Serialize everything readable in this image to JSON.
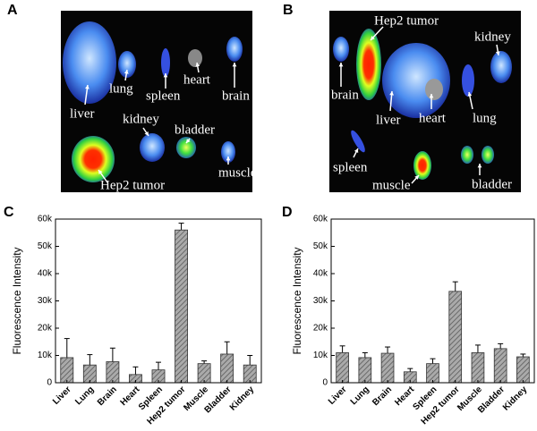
{
  "panels": [
    {
      "label": "A",
      "image_labels": [
        "liver",
        "lung",
        "spleen",
        "heart",
        "brain",
        "kidney",
        "bladder",
        "Hep2 tumor",
        "muscle"
      ]
    },
    {
      "label": "B",
      "image_labels": [
        "Hep2 tumor",
        "kidney",
        "brain",
        "liver",
        "heart",
        "lung",
        "spleen",
        "muscle",
        "bladder"
      ]
    },
    {
      "label": "C"
    },
    {
      "label": "D"
    }
  ],
  "chart_data": [
    {
      "type": "bar",
      "y_label": "Fluorescence Intensity",
      "categories": [
        "Liver",
        "Lung",
        "Brain",
        "Heart",
        "Spleen",
        "Hep2 tumor",
        "Muscle",
        "Bladder",
        "Kidney"
      ],
      "values": [
        9200,
        6500,
        7700,
        3000,
        4700,
        56000,
        7000,
        10500,
        6500
      ],
      "errors": [
        7000,
        3800,
        5000,
        2800,
        2800,
        2500,
        1000,
        4500,
        3500
      ],
      "color": "#777777",
      "ylim": [
        0,
        60000
      ],
      "yticks": [
        0,
        {
          "value": 10000,
          "label": "10k"
        },
        {
          "value": 20000,
          "label": "20k"
        },
        {
          "value": 30000,
          "label": "30k"
        },
        {
          "value": 40000,
          "label": "40k"
        },
        {
          "value": 50000,
          "label": "50k"
        },
        {
          "value": 60000,
          "label": "60k"
        }
      ]
    },
    {
      "type": "bar",
      "y_label": "Fluorescence Intensity",
      "categories": [
        "Liver",
        "Lung",
        "Brain",
        "Heart",
        "Spleen",
        "Hep2 tumor",
        "Muscle",
        "Bladder",
        "Kidney"
      ],
      "values": [
        11000,
        9200,
        10800,
        4000,
        7000,
        33500,
        11000,
        12500,
        9500
      ],
      "errors": [
        2500,
        1800,
        2300,
        1200,
        1800,
        3500,
        2800,
        1800,
        1000
      ],
      "color": "#777777",
      "ylim": [
        0,
        60000
      ],
      "yticks": [
        0,
        {
          "value": 10000,
          "label": "10k"
        },
        {
          "value": 20000,
          "label": "20k"
        },
        {
          "value": 30000,
          "label": "30k"
        },
        {
          "value": 40000,
          "label": "40k"
        },
        {
          "value": 50000,
          "label": "50k"
        },
        {
          "value": 60000,
          "label": "60k"
        }
      ]
    }
  ]
}
